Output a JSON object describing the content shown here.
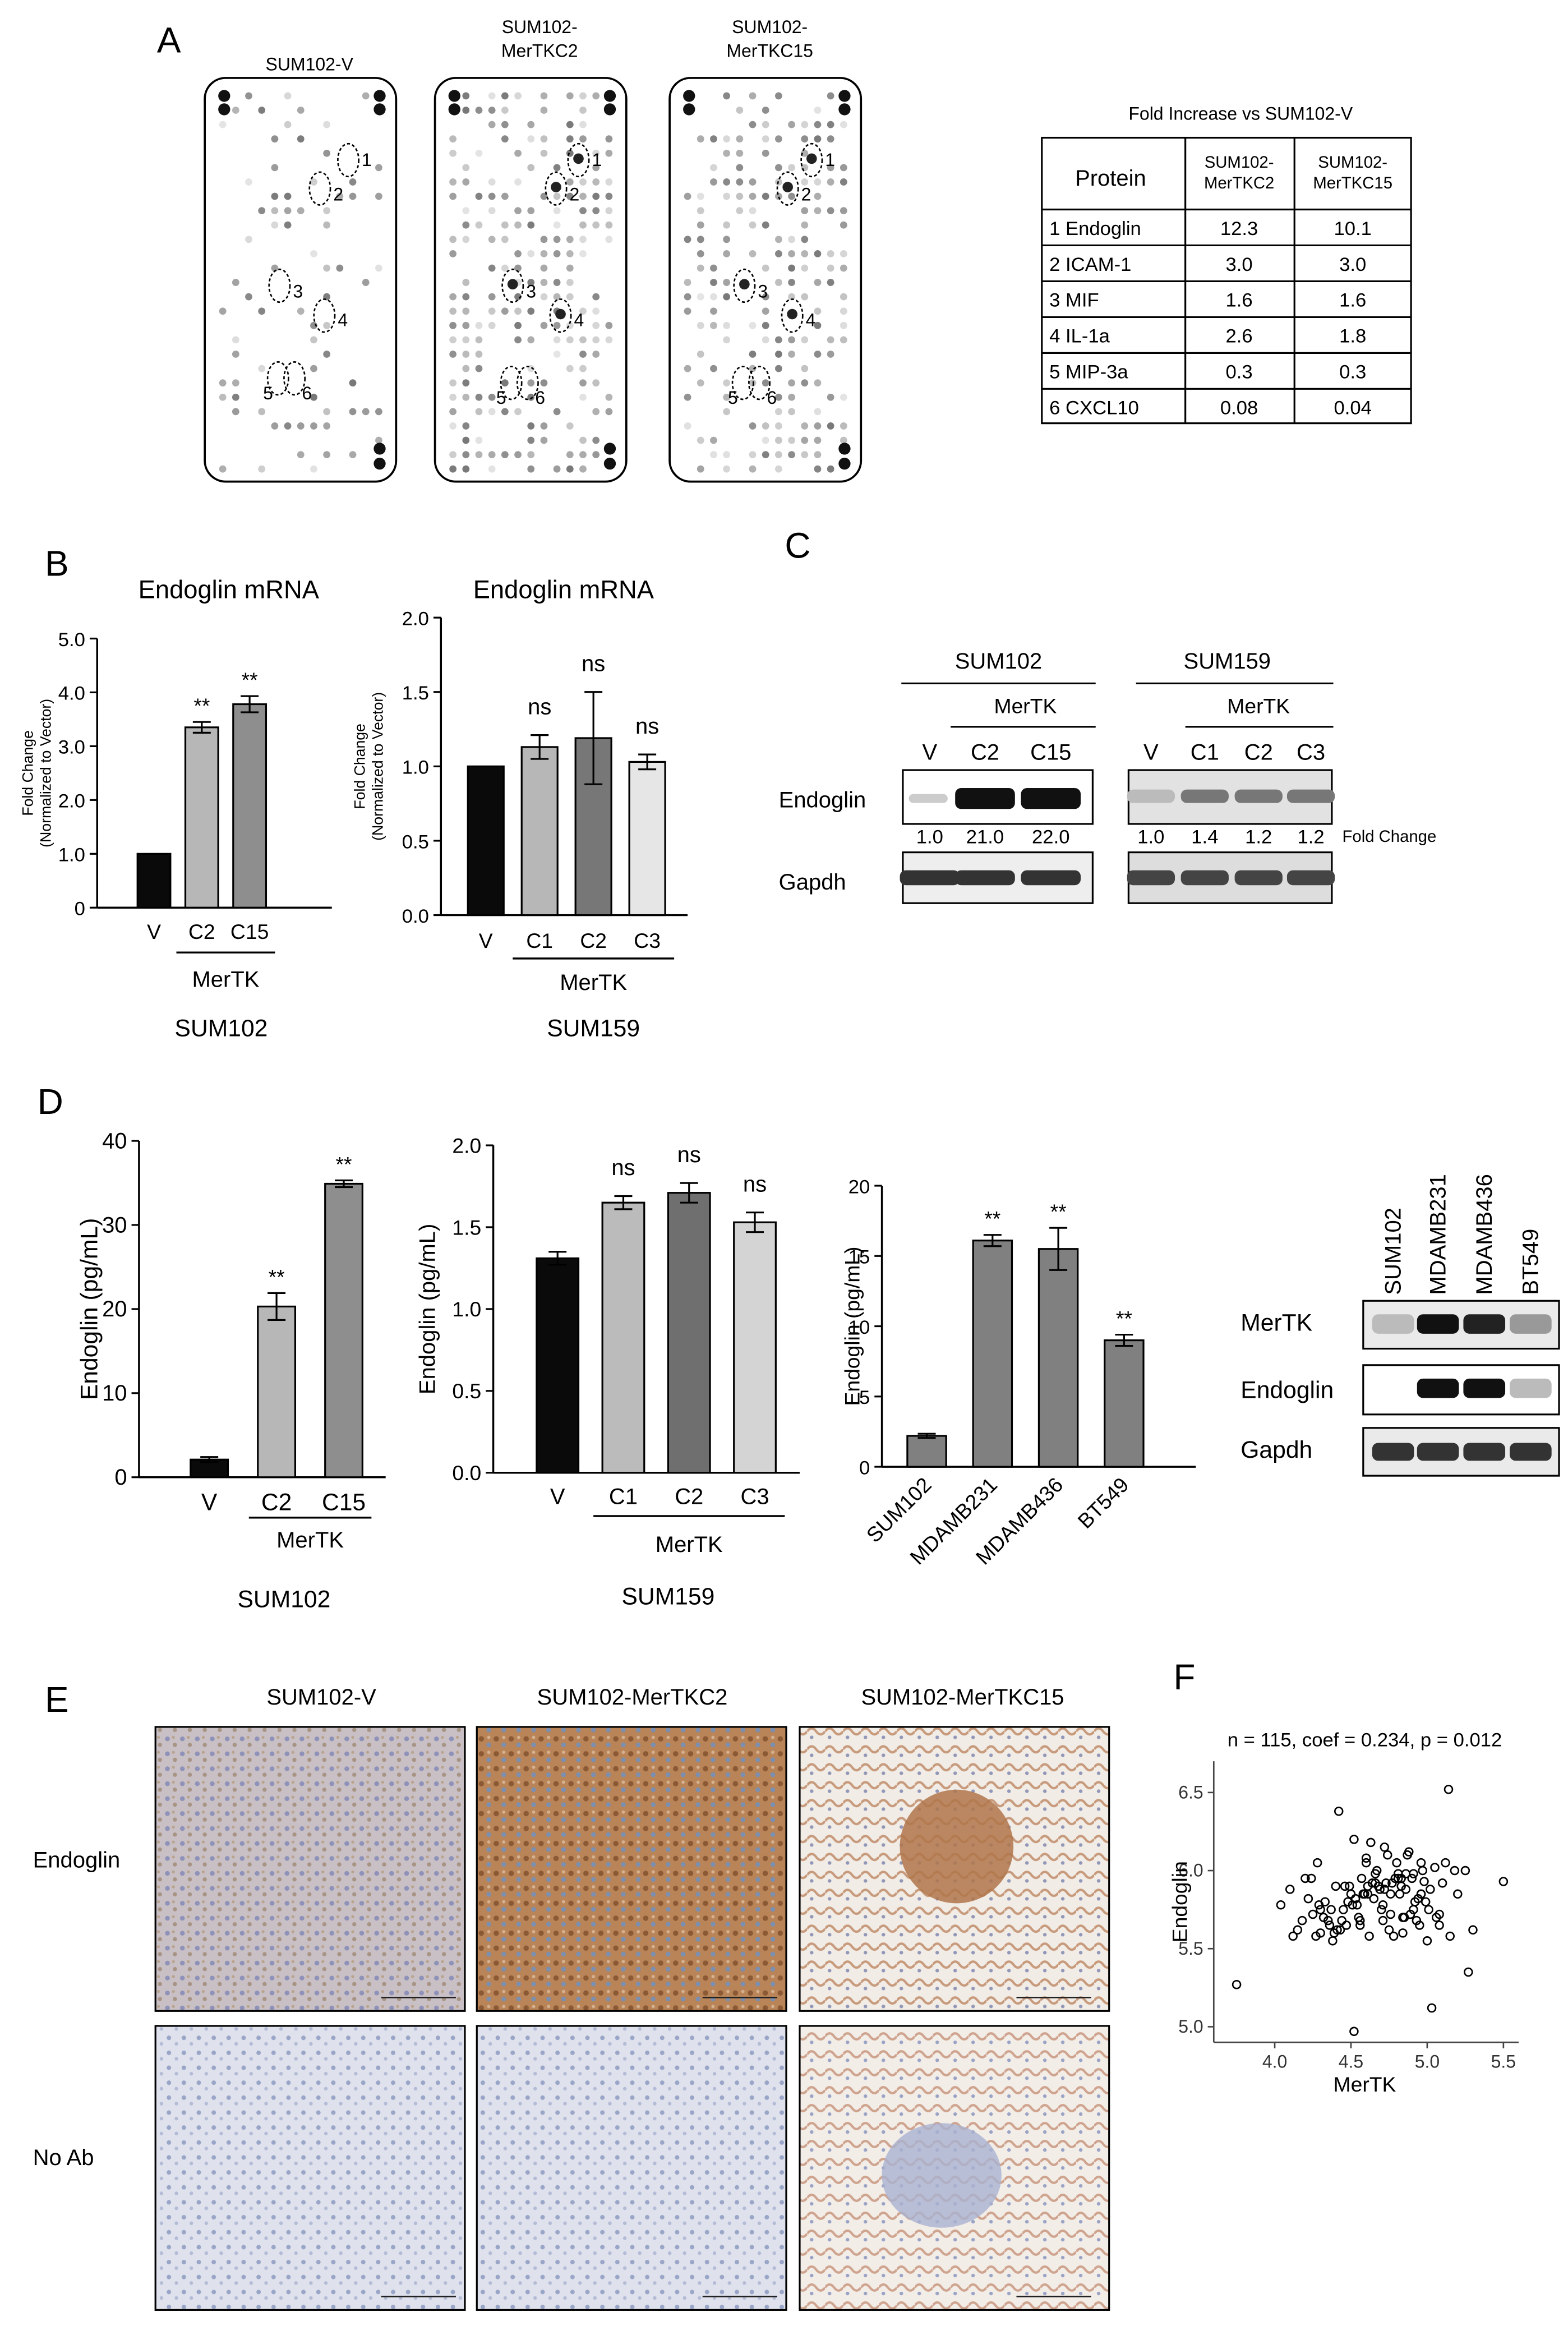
{
  "panel_labels": {
    "A": "A",
    "B": "B",
    "C": "C",
    "D": "D",
    "E": "E",
    "F": "F"
  },
  "panelA": {
    "array_titles": [
      "SUM102-V",
      "SUM102-\nMerTKC2",
      "SUM102-\nMerTKC15"
    ],
    "spot_labels": [
      "1",
      "2",
      "3",
      "4",
      "5",
      "6"
    ],
    "table_title": "Fold Increase vs SUM102-V",
    "table_headers": [
      "Protein",
      "SUM102-\nMerTKC2",
      "SUM102-\nMerTKC15"
    ],
    "table_rows": [
      [
        "1  Endoglin",
        "12.3",
        "10.1"
      ],
      [
        "2  ICAM-1",
        "3.0",
        "3.0"
      ],
      [
        "3  MIF",
        "1.6",
        "1.6"
      ],
      [
        "4  IL-1a",
        "2.6",
        "1.8"
      ],
      [
        "5  MIP-3a",
        "0.3",
        "0.3"
      ],
      [
        "6  CXCL10",
        "0.08",
        "0.04"
      ]
    ]
  },
  "panelC": {
    "left_title": "SUM102",
    "right_title": "SUM159",
    "merTK_label": "MerTK",
    "left_lanes": [
      "V",
      "C2",
      "C15"
    ],
    "right_lanes": [
      "V",
      "C1",
      "C2",
      "C3"
    ],
    "row_labels": [
      "Endoglin",
      "Gapdh"
    ],
    "left_fold": [
      "1.0",
      "21.0",
      "22.0"
    ],
    "right_fold": [
      "1.0",
      "1.4",
      "1.2",
      "1.2"
    ],
    "fold_label": "Fold Change"
  },
  "panelD_blot": {
    "lanes": [
      "SUM102",
      "MDAMB231",
      "MDAMB436",
      "BT549"
    ],
    "rows": [
      "MerTK",
      "Endoglin",
      "Gapdh"
    ]
  },
  "panelE": {
    "col_titles": [
      "SUM102-V",
      "SUM102-MerTKC2",
      "SUM102-MerTKC15"
    ],
    "row_labels": [
      "Endoglin",
      "No Ab"
    ]
  },
  "chart_data": [
    {
      "id": "B1",
      "type": "bar",
      "title": "Endoglin mRNA",
      "ylabel": "Fold Change\n(Normalized to Vector)",
      "ylim": [
        0,
        5
      ],
      "yticks": [
        "0",
        "1.0",
        "2.0",
        "3.0",
        "4.0",
        "5.0"
      ],
      "categories": [
        "V",
        "C2",
        "C15"
      ],
      "values": [
        1.0,
        3.35,
        3.78
      ],
      "errors": [
        0,
        0.1,
        0.15
      ],
      "annotations": [
        "",
        "**",
        "**"
      ],
      "colors": [
        "#0a0a0a",
        "#b7b7b7",
        "#8e8e8e"
      ],
      "group_label": "MerTK",
      "cell_line": "SUM102"
    },
    {
      "id": "B2",
      "type": "bar",
      "title": "Endoglin mRNA",
      "ylabel": "Fold Change\n(Normalized to Vector)",
      "ylim": [
        0,
        2
      ],
      "yticks": [
        "0.0",
        "0.5",
        "1.0",
        "1.5",
        "2.0"
      ],
      "categories": [
        "V",
        "C1",
        "C2",
        "C3"
      ],
      "values": [
        1.0,
        1.13,
        1.19,
        1.03
      ],
      "errors": [
        0,
        0.08,
        0.31,
        0.05
      ],
      "annotations": [
        "",
        "ns",
        "ns",
        "ns"
      ],
      "colors": [
        "#0a0a0a",
        "#b7b7b7",
        "#777777",
        "#e6e6e6"
      ],
      "group_label": "MerTK",
      "cell_line": "SUM159"
    },
    {
      "id": "D1",
      "type": "bar",
      "ylabel": "Endoglin (pg/mL)",
      "ylim": [
        0,
        40
      ],
      "yticks": [
        "0",
        "10",
        "20",
        "30",
        "40"
      ],
      "categories": [
        "V",
        "C2",
        "C15"
      ],
      "values": [
        2.1,
        20.3,
        34.9
      ],
      "errors": [
        0.3,
        1.6,
        0.4
      ],
      "annotations": [
        "",
        "**",
        "**"
      ],
      "colors": [
        "#0a0a0a",
        "#b7b7b7",
        "#8e8e8e"
      ],
      "group_label": "MerTK",
      "cell_line": "SUM102"
    },
    {
      "id": "D2",
      "type": "bar",
      "ylabel": "Endoglin (pg/mL)",
      "ylim": [
        0,
        2
      ],
      "yticks": [
        "0.0",
        "0.5",
        "1.0",
        "1.5",
        "2.0"
      ],
      "categories": [
        "V",
        "C1",
        "C2",
        "C3"
      ],
      "values": [
        1.31,
        1.65,
        1.71,
        1.53
      ],
      "errors": [
        0.04,
        0.04,
        0.06,
        0.06
      ],
      "annotations": [
        "",
        "ns",
        "ns",
        "ns"
      ],
      "colors": [
        "#0a0a0a",
        "#bbbbbb",
        "#6f6f6f",
        "#d4d4d4"
      ],
      "group_label": "MerTK",
      "cell_line": "SUM159"
    },
    {
      "id": "D3",
      "type": "bar",
      "ylabel": "Endoglin (pg/mL)",
      "ylim": [
        0,
        20
      ],
      "yticks": [
        "0",
        "5",
        "10",
        "15",
        "20"
      ],
      "categories": [
        "SUM102",
        "MDAMB231",
        "MDAMB436",
        "BT549"
      ],
      "values": [
        2.2,
        16.1,
        15.5,
        9.0
      ],
      "errors": [
        0.15,
        0.4,
        1.5,
        0.4
      ],
      "annotations": [
        "",
        "**",
        "**",
        "**"
      ],
      "colors": [
        "#808080",
        "#808080",
        "#808080",
        "#808080"
      ]
    },
    {
      "id": "F",
      "type": "scatter",
      "title": "n = 115, coef = 0.234, p = 0.012",
      "xlabel": "MerTK",
      "ylabel": "Endoglin",
      "xlim": [
        3.6,
        5.6
      ],
      "ylim": [
        4.9,
        6.7
      ],
      "xticks": [
        "4.0",
        "4.5",
        "5.0",
        "5.5"
      ],
      "yticks": [
        "5.0",
        "5.5",
        "6.0",
        "6.5"
      ],
      "x": [
        3.75,
        4.52,
        4.83,
        5.27,
        5.5,
        4.04,
        4.1,
        4.15,
        4.2,
        4.25,
        4.28,
        4.3,
        4.33,
        4.35,
        4.38,
        4.4,
        4.42,
        4.45,
        4.47,
        4.5,
        4.52,
        4.55,
        4.57,
        4.6,
        4.62,
        4.65,
        4.67,
        4.7,
        4.72,
        4.75,
        4.77,
        4.8,
        4.82,
        4.85,
        4.87,
        4.9,
        4.92,
        4.95,
        4.97,
        5.0,
        5.02,
        5.05,
        5.08,
        5.1,
        5.15,
        5.2,
        5.25,
        5.3,
        4.18,
        4.22,
        4.27,
        4.32,
        4.37,
        4.41,
        4.46,
        4.51,
        4.56,
        4.61,
        4.66,
        4.71,
        4.76,
        4.81,
        4.86,
        4.91,
        4.96,
        5.01,
        5.06,
        4.12,
        4.24,
        4.36,
        4.48,
        4.6,
        4.72,
        4.84,
        4.96,
        5.08,
        4.3,
        4.44,
        4.58,
        4.68,
        4.78,
        4.88,
        4.98,
        4.64,
        4.74,
        4.84,
        4.94,
        4.54,
        4.79,
        4.69,
        4.89,
        4.99,
        4.59,
        4.49,
        4.39,
        4.29,
        5.12,
        5.18,
        4.73,
        4.83,
        4.63,
        4.93,
        4.53,
        4.43,
        4.81,
        4.71,
        4.91,
        4.61,
        5.03,
        4.86,
        4.66,
        4.76,
        4.56,
        4.96,
        5.14
      ],
      "y": [
        5.27,
        4.97,
        5.95,
        5.35,
        5.93,
        5.78,
        5.88,
        5.62,
        5.95,
        5.72,
        6.05,
        5.6,
        5.8,
        5.68,
        5.55,
        5.9,
        6.38,
        5.75,
        5.65,
        5.85,
        6.2,
        5.7,
        5.95,
        6.08,
        5.58,
        5.82,
        6.0,
        5.75,
        6.15,
        5.62,
        5.92,
        6.05,
        5.85,
        5.7,
        6.1,
        5.95,
        5.8,
        5.65,
        6.0,
        5.55,
        5.88,
        6.02,
        5.72,
        5.92,
        5.58,
        5.85,
        6.0,
        5.62,
        5.68,
        5.82,
        5.58,
        5.7,
        5.75,
        5.62,
        5.9,
        5.78,
        5.65,
        5.85,
        5.98,
        5.68,
        5.72,
        5.98,
        5.88,
        5.75,
        5.85,
        5.75,
        5.7,
        5.58,
        5.95,
        5.65,
        5.8,
        6.05,
        5.88,
        5.6,
        6.05,
        5.65,
        5.75,
        5.68,
        5.85,
        5.9,
        5.58,
        6.12,
        5.93,
        5.92,
        6.1,
        5.7,
        5.82,
        5.78,
        5.95,
        5.88,
        5.72,
        5.8,
        5.85,
        5.9,
        5.6,
        5.78,
        6.05,
        6.0,
        5.92,
        5.9,
        6.18,
        5.68,
        5.82,
        5.62,
        5.95,
        5.78,
        5.98,
        5.9,
        5.12,
        5.98,
        5.92,
        5.85,
        5.68,
        5.85,
        6.52
      ]
    }
  ]
}
